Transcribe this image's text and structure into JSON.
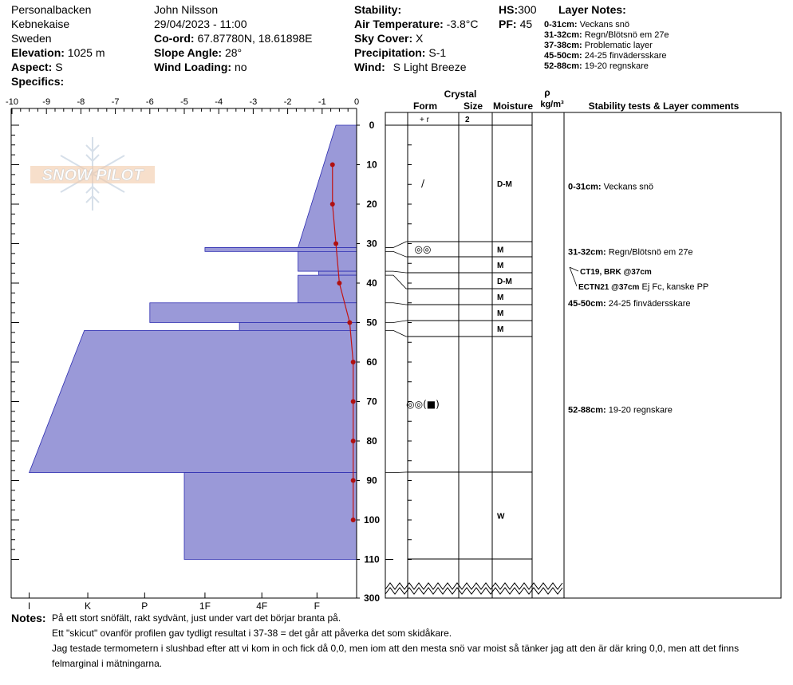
{
  "header": {
    "location": "Personalbacken",
    "area": "Kebnekaise",
    "country": "Sweden",
    "elevation_label": "Elevation:",
    "elevation": "1025 m",
    "aspect_label": "Aspect:",
    "aspect": "S",
    "specifics_label": "Specifics:",
    "observer": "John Nilsson",
    "datetime": "29/04/2023 - 11:00",
    "coord_label": "Co-ord:",
    "coord": "67.87780N, 18.61898E",
    "slope_label": "Slope Angle:",
    "slope": "28°",
    "wind_loading_label": "Wind Loading:",
    "wind_loading": "no",
    "stability_label": "Stability:",
    "air_temp_label": "Air Temperature:",
    "air_temp": "-3.8°C",
    "sky_label": "Sky Cover:",
    "sky": "X",
    "precip_label": "Precipitation:",
    "precip": "S-1",
    "wind_label": "Wind:",
    "wind": "S Light Breeze",
    "hs_label": "HS:",
    "hs": "300",
    "pf_label": "PF:",
    "pf": "45",
    "layer_notes_title": "Layer Notes:",
    "layer_notes": [
      {
        "range": "0-31cm:",
        "text": "Veckans snö"
      },
      {
        "range": "31-32cm:",
        "text": "Regn/Blötsnö em 27e"
      },
      {
        "range": "37-38cm:",
        "text": "Problematic layer"
      },
      {
        "range": "45-50cm:",
        "text": "24-25 finvädersskare"
      },
      {
        "range": "52-88cm:",
        "text": "19-20 regnskare"
      }
    ]
  },
  "columns": {
    "crystal": "Crystal",
    "form": "Form",
    "size": "Size",
    "moisture": "Moisture",
    "rho": "ρ",
    "density_unit": "kg/m³",
    "comments": "Stability tests & Layer comments"
  },
  "watermark": "SNOW PILOT",
  "comments": [
    {
      "depth": 15.5,
      "range": "0-31cm:",
      "text": "Veckans snö"
    },
    {
      "depth": 32,
      "range": "31-32cm:",
      "text": "Regn/Blötsnö em 27e"
    },
    {
      "depth": 45,
      "range": "45-50cm:",
      "text": "24-25 finvädersskare"
    },
    {
      "depth": 72,
      "range": "52-88cm:",
      "text": "19-20 regnskare"
    }
  ],
  "stability_tests": [
    {
      "depth": 37,
      "code": "CT19, BRK @37cm",
      "text": ""
    },
    {
      "depth": 37,
      "code": "ECTN21 @37cm",
      "text": "Ej Fc, kanske PP"
    }
  ],
  "notes": {
    "label": "Notes:",
    "lines": [
      "På ett stort snöfält, rakt sydvänt, just under vart det börjar branta på.",
      "Ett \"skicut\" ovanför profilen gav tydligt resultat i 37-38 = det går att påverka det som skidåkare.",
      "Jag testade termometern i slushbad efter att vi kom in och fick då 0,0, men iom att den mesta snö var moist så tänker jag att den är där kring 0,0, men att det finns",
      "felmarginal i mätningarna."
    ]
  },
  "chart_data": {
    "type": "snow-profile",
    "temperature_axis": {
      "ticks": [
        "-10",
        "-9",
        "-8",
        "-7",
        "-6",
        "-5",
        "-4",
        "-3",
        "-2",
        "-1",
        "0"
      ],
      "range": [
        -10,
        0
      ]
    },
    "hardness_axis": {
      "ticks": [
        "I",
        "K",
        "P",
        "1F",
        "4F",
        "F"
      ]
    },
    "depth_axis": {
      "ticks": [
        "0",
        "10",
        "20",
        "30",
        "40",
        "50",
        "60",
        "70",
        "80",
        "90",
        "100",
        "110",
        "300"
      ],
      "unit": "cm"
    },
    "temperature_profile": [
      {
        "depth": 10,
        "temp": -0.7
      },
      {
        "depth": 20,
        "temp": -0.7
      },
      {
        "depth": 30,
        "temp": -0.6
      },
      {
        "depth": 40,
        "temp": -0.5
      },
      {
        "depth": 50,
        "temp": -0.2
      },
      {
        "depth": 60,
        "temp": -0.1
      },
      {
        "depth": 70,
        "temp": -0.1
      },
      {
        "depth": 80,
        "temp": -0.1
      },
      {
        "depth": 90,
        "temp": -0.1
      },
      {
        "depth": 100,
        "temp": -0.1
      }
    ],
    "hardness_profile": [
      {
        "top": 0,
        "bottom": 31,
        "hardness_top": 0.6,
        "hardness_bottom": 1.7
      },
      {
        "top": 31,
        "bottom": 32,
        "hardness_top": 4.4,
        "hardness_bottom": 4.4
      },
      {
        "top": 32,
        "bottom": 37,
        "hardness_top": 1.7,
        "hardness_bottom": 1.7
      },
      {
        "top": 37,
        "bottom": 38,
        "hardness_top": 1.1,
        "hardness_bottom": 1.1
      },
      {
        "top": 38,
        "bottom": 45,
        "hardness_top": 1.7,
        "hardness_bottom": 1.7
      },
      {
        "top": 45,
        "bottom": 50,
        "hardness_top": 6.0,
        "hardness_bottom": 6.0
      },
      {
        "top": 50,
        "bottom": 52,
        "hardness_top": 3.4,
        "hardness_bottom": 3.4
      },
      {
        "top": 52,
        "bottom": 88,
        "hardness_top": 7.9,
        "hardness_bottom": 9.5
      },
      {
        "top": 88,
        "bottom": 110,
        "hardness_top": 5.0,
        "hardness_bottom": 5.0
      }
    ],
    "layers": [
      {
        "top": 0,
        "bottom": 31,
        "moisture": "D-M",
        "form": "/"
      },
      {
        "top": 31,
        "bottom": 32,
        "moisture": "M",
        "form": "◎◎"
      },
      {
        "top": 32,
        "bottom": 37,
        "moisture": "M",
        "form": ""
      },
      {
        "top": 37,
        "bottom": 38,
        "moisture": "D-M",
        "form": ""
      },
      {
        "top": 38,
        "bottom": 45,
        "moisture": "M",
        "form": ""
      },
      {
        "top": 45,
        "bottom": 50,
        "moisture": "M",
        "form": ""
      },
      {
        "top": 50,
        "bottom": 52,
        "moisture": "M",
        "form": ""
      },
      {
        "top": 52,
        "bottom": 88,
        "moisture": "",
        "form": "◎◎(■)"
      },
      {
        "top": 88,
        "bottom": 110,
        "moisture": "W",
        "form": ""
      }
    ],
    "top_layer": {
      "form": "+ r",
      "size": "2"
    }
  }
}
